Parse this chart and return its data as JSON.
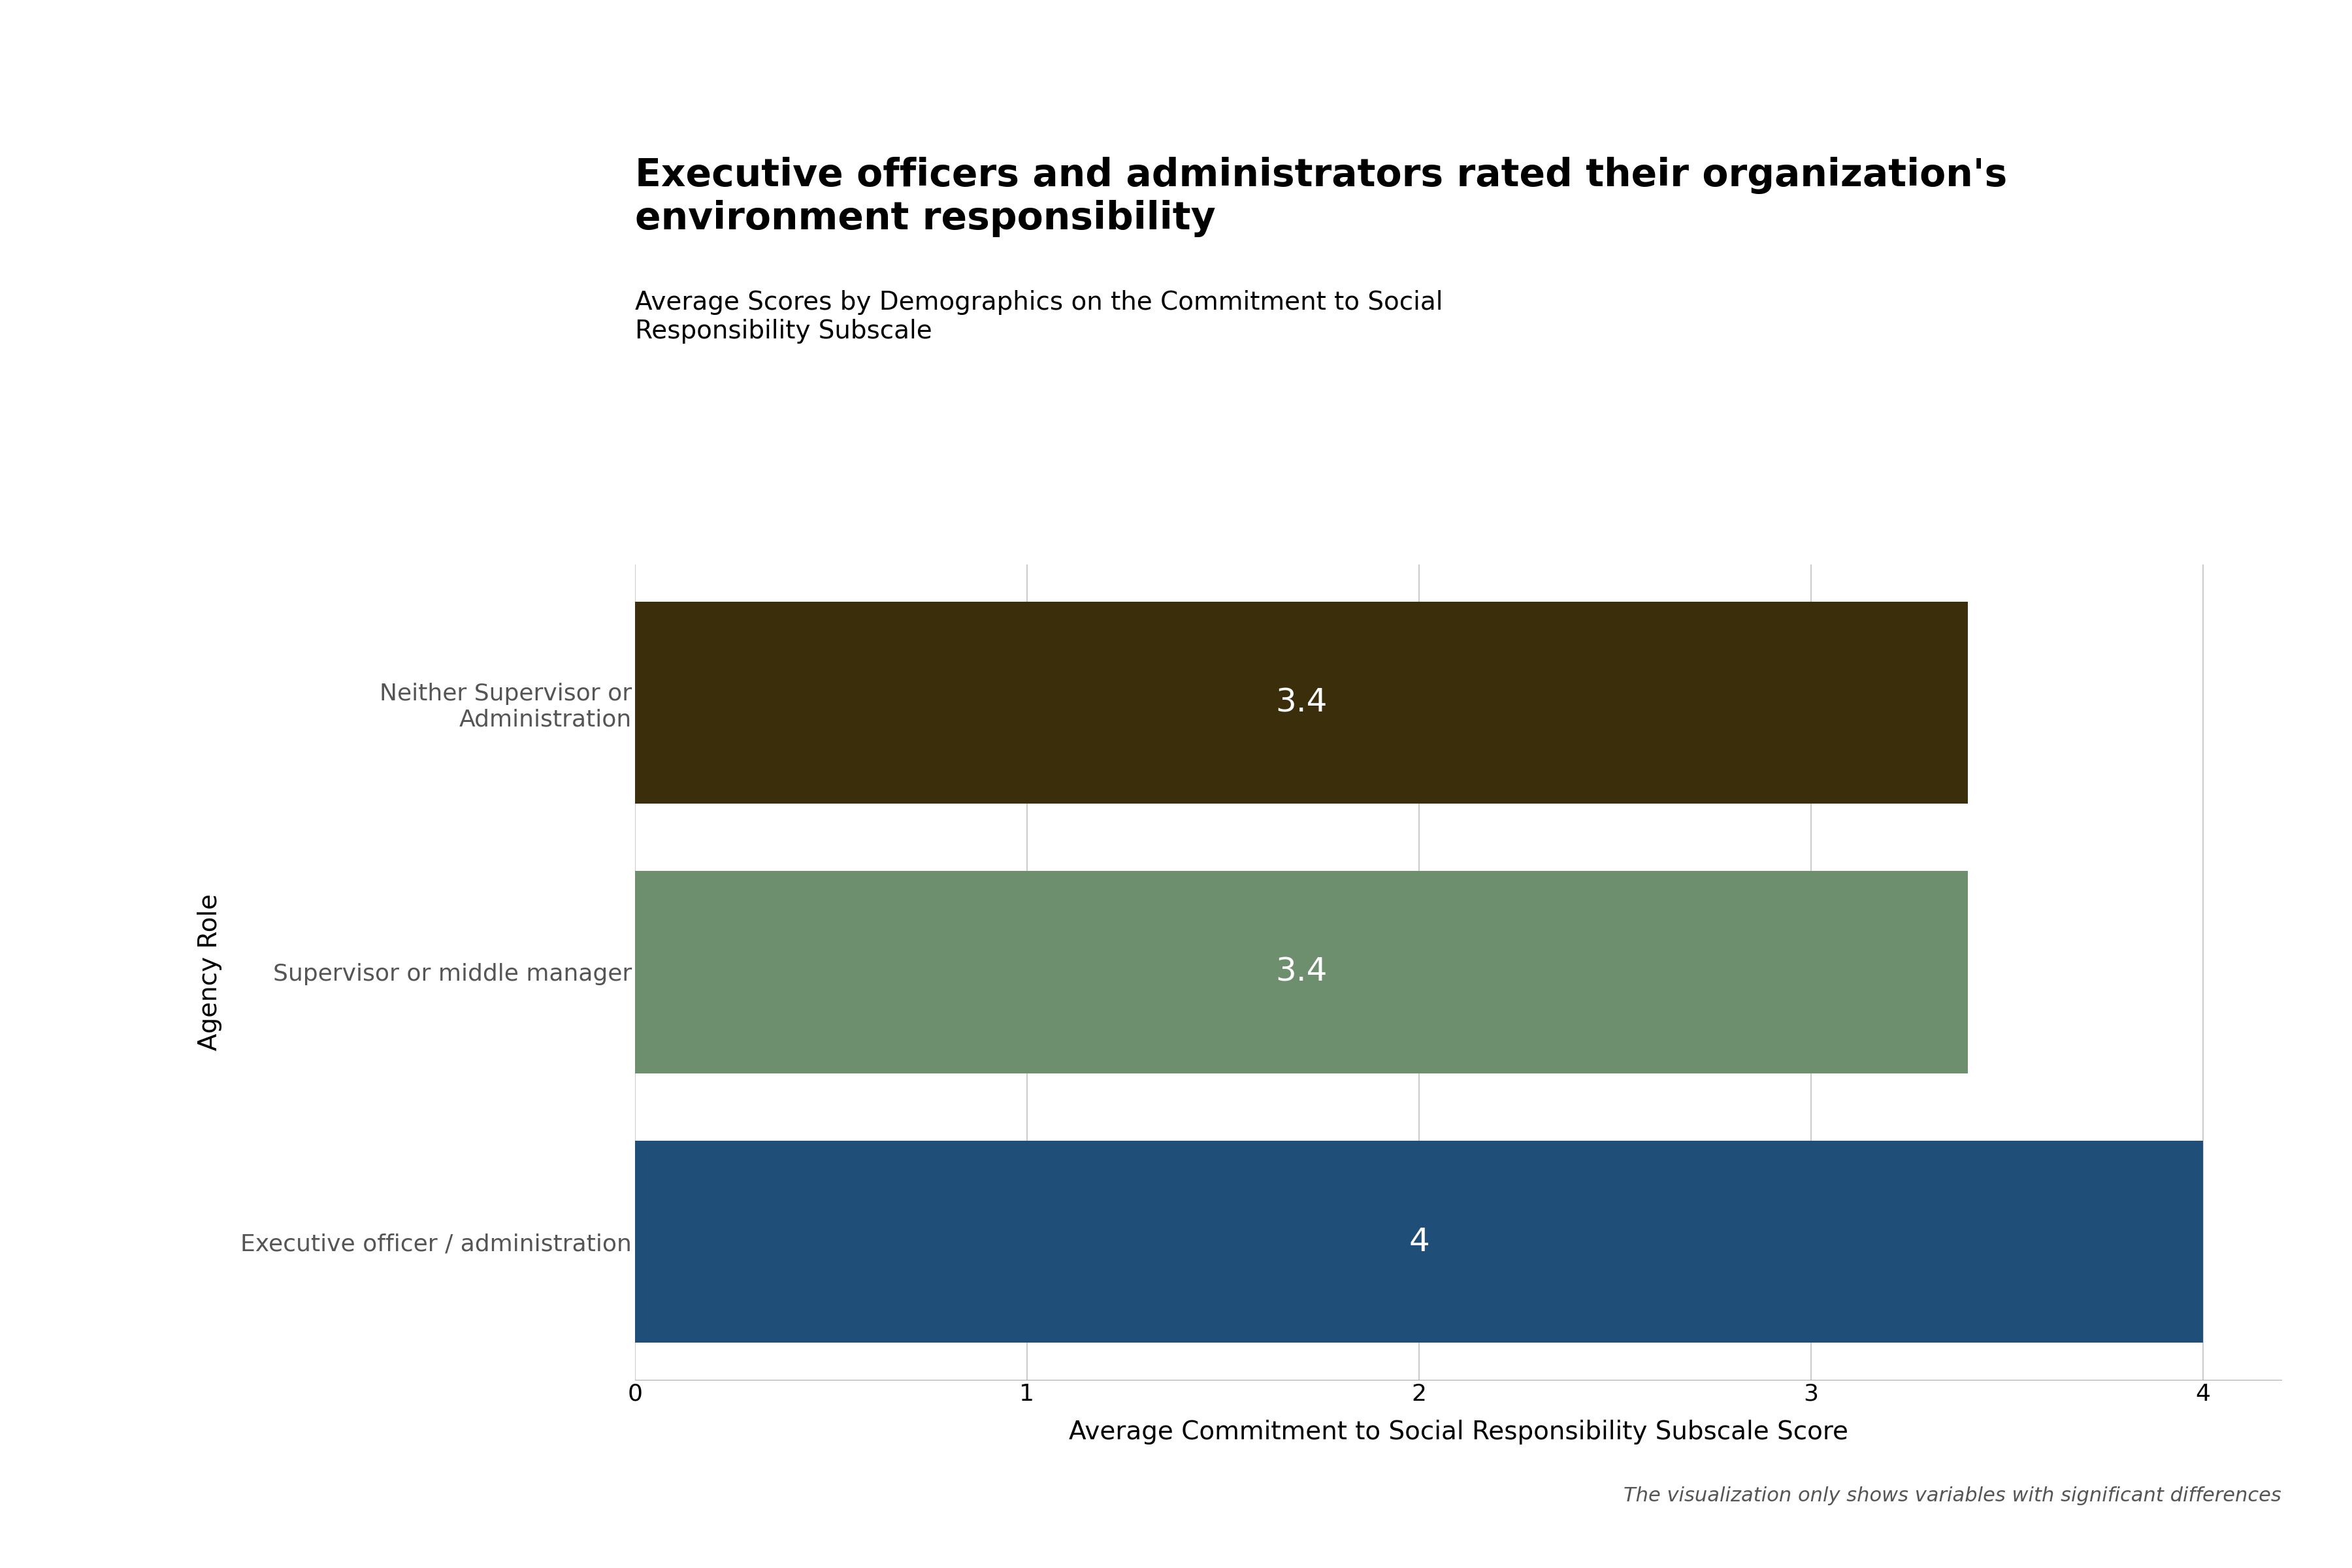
{
  "title_main": "Executive officers and administrators rated their organization's\nenvironment responsibility",
  "title_sub": "Average Scores by Demographics on the Commitment to Social\nResponsibility Subscale",
  "categories": [
    "Executive officer / administration",
    "Supervisor or middle manager",
    "Neither Supervisor or\nAdministration"
  ],
  "values": [
    4.0,
    3.4,
    3.4
  ],
  "bar_colors": [
    "#1F4E79",
    "#6D8F6D",
    "#3B2E0A"
  ],
  "xlabel": "Average Commitment to Social Responsibility Subscale Score",
  "ylabel": "Agency Role",
  "xlim": [
    0,
    4.2
  ],
  "xticks": [
    0,
    1,
    2,
    3,
    4
  ],
  "footnote": "The visualization only shows variables with significant differences",
  "bar_label_color": "#FFFFFF",
  "bar_label_fontsize": 36,
  "title_main_fontsize": 42,
  "title_sub_fontsize": 28,
  "axis_label_fontsize": 28,
  "tick_label_fontsize": 26,
  "footnote_fontsize": 22,
  "ylabel_fontsize": 28,
  "background_color": "#FFFFFF",
  "grid_color": "#CCCCCC",
  "ytick_color": "#555555"
}
